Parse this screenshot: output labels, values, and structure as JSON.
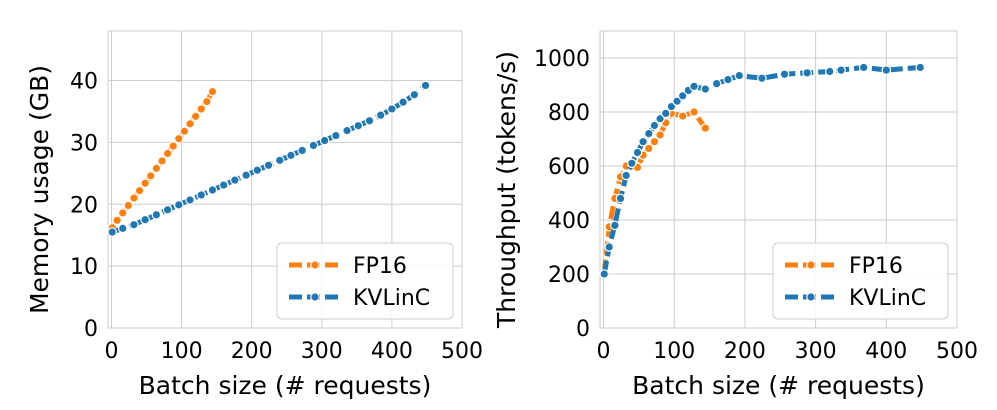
{
  "chart_data": [
    {
      "type": "line",
      "title": "",
      "xlabel": "Batch size (# requests)",
      "ylabel": "Memory usage (GB)",
      "xlim": [
        -5,
        500
      ],
      "ylim": [
        0,
        48
      ],
      "xticks": [
        0,
        100,
        200,
        300,
        400,
        500
      ],
      "yticks": [
        0,
        10,
        20,
        30,
        40
      ],
      "xtick_labels": [
        "0",
        "100",
        "200",
        "300",
        "400",
        "500"
      ],
      "ytick_labels": [
        "0",
        "10",
        "20",
        "30",
        "40"
      ],
      "grid": true,
      "legend_position": "bottom-right",
      "series": [
        {
          "name": "FP16",
          "color": "#ff7f0e",
          "x": [
            1,
            8,
            16,
            24,
            32,
            40,
            48,
            56,
            64,
            72,
            80,
            88,
            96,
            104,
            112,
            120,
            128,
            136,
            144
          ],
          "y": [
            16.2,
            17.4,
            18.6,
            19.8,
            21.0,
            22.2,
            23.4,
            24.6,
            25.8,
            27.0,
            28.2,
            29.4,
            30.6,
            31.8,
            33.0,
            34.2,
            35.4,
            36.6,
            38.2
          ]
        },
        {
          "name": "KVLinC",
          "color": "#1f77b4",
          "x": [
            1,
            16,
            32,
            48,
            64,
            80,
            96,
            112,
            128,
            144,
            160,
            176,
            192,
            208,
            224,
            240,
            256,
            272,
            288,
            304,
            320,
            336,
            352,
            368,
            384,
            400,
            416,
            432,
            448
          ],
          "y": [
            15.5,
            16.1,
            16.7,
            17.5,
            18.3,
            19.1,
            19.9,
            20.7,
            21.5,
            22.3,
            23.1,
            23.9,
            24.7,
            25.5,
            26.3,
            27.1,
            27.9,
            28.7,
            29.5,
            30.3,
            31.1,
            31.9,
            32.7,
            33.5,
            34.4,
            35.4,
            36.5,
            37.7,
            39.2
          ]
        }
      ]
    },
    {
      "type": "line",
      "title": "",
      "xlabel": "Batch size (# requests)",
      "ylabel": "Throughput (tokens/s)",
      "xlim": [
        -5,
        500
      ],
      "ylim": [
        0,
        1100
      ],
      "xticks": [
        0,
        100,
        200,
        300,
        400,
        500
      ],
      "yticks": [
        0,
        200,
        400,
        600,
        800,
        1000
      ],
      "xtick_labels": [
        "0",
        "100",
        "200",
        "300",
        "400",
        "500"
      ],
      "ytick_labels": [
        "0",
        "200",
        "400",
        "600",
        "800",
        "1000"
      ],
      "grid": true,
      "legend_position": "bottom-right",
      "series": [
        {
          "name": "FP16",
          "color": "#ff7f0e",
          "x": [
            1,
            8,
            16,
            24,
            32,
            40,
            48,
            56,
            64,
            72,
            80,
            88,
            96,
            112,
            128,
            144
          ],
          "y": [
            205,
            375,
            480,
            560,
            600,
            600,
            595,
            640,
            665,
            690,
            715,
            760,
            795,
            785,
            800,
            740
          ]
        },
        {
          "name": "KVLinC",
          "color": "#1f77b4",
          "x": [
            1,
            8,
            16,
            24,
            32,
            40,
            48,
            56,
            64,
            72,
            80,
            88,
            96,
            104,
            112,
            120,
            128,
            144,
            160,
            176,
            192,
            224,
            256,
            288,
            320,
            336,
            368,
            400,
            448
          ],
          "y": [
            200,
            300,
            380,
            480,
            565,
            610,
            650,
            690,
            720,
            750,
            775,
            795,
            820,
            840,
            860,
            880,
            895,
            885,
            905,
            920,
            935,
            925,
            940,
            945,
            950,
            955,
            965,
            955,
            965
          ]
        }
      ]
    }
  ]
}
